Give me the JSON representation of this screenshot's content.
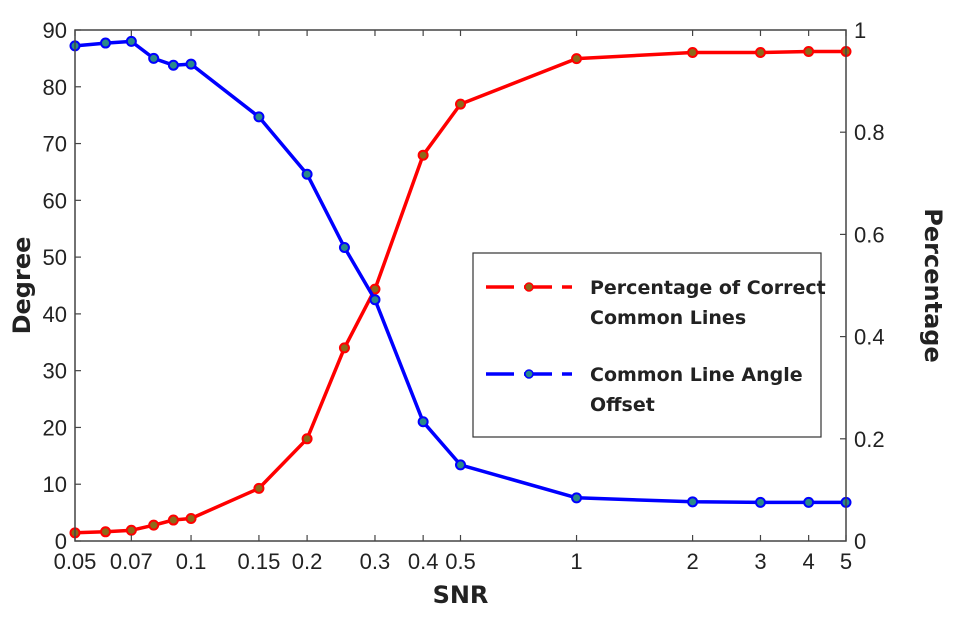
{
  "chart_data": {
    "type": "line",
    "title": "",
    "xlabel": "SNR",
    "ylabel": "Degree",
    "y2label": "Percentage",
    "x_scale": "log",
    "xlim": [
      0.05,
      5
    ],
    "ylim": [
      0,
      90
    ],
    "y2lim": [
      0,
      1
    ],
    "grid": false,
    "legend_position": "center-right",
    "x_ticks": [
      0.05,
      0.07,
      0.1,
      0.15,
      0.2,
      0.3,
      0.4,
      0.5,
      1,
      2,
      3,
      4,
      5
    ],
    "x_tick_labels": [
      "0.05",
      "0.07",
      "0.1",
      "0.15",
      "0.2",
      "0.3",
      "0.4",
      "0.5",
      "1",
      "2",
      "3",
      "4",
      "5"
    ],
    "y_ticks": [
      0,
      10,
      20,
      30,
      40,
      50,
      60,
      70,
      80,
      90
    ],
    "y_tick_labels": [
      "0",
      "10",
      "20",
      "30",
      "40",
      "50",
      "60",
      "70",
      "80",
      "90"
    ],
    "y2_ticks": [
      0,
      0.2,
      0.4,
      0.6,
      0.8,
      1
    ],
    "y2_tick_labels": [
      "0",
      "0.2",
      "0.4",
      "0.6",
      "0.8",
      "1"
    ],
    "series": [
      {
        "name": "Percentage of Correct Common Lines",
        "legend_lines": [
          "Percentage of Correct",
          "Common Lines"
        ],
        "axis": "right",
        "color": "#ff0000",
        "marker_color": "#8b6a1a",
        "x": [
          0.05,
          0.06,
          0.07,
          0.08,
          0.09,
          0.1,
          0.15,
          0.2,
          0.25,
          0.3,
          0.4,
          0.5,
          1,
          2,
          3,
          4,
          5
        ],
        "values": [
          0.016,
          0.018,
          0.021,
          0.031,
          0.041,
          0.044,
          0.103,
          0.2,
          0.378,
          0.493,
          0.755,
          0.855,
          0.944,
          0.956,
          0.956,
          0.958,
          0.958
        ]
      },
      {
        "name": "Common Line Angle Offset",
        "legend_lines": [
          "Common Line Angle",
          "Offset"
        ],
        "axis": "left",
        "color": "#0000ff",
        "marker_color": "#2a8a8a",
        "x": [
          0.05,
          0.06,
          0.07,
          0.08,
          0.09,
          0.1,
          0.15,
          0.2,
          0.25,
          0.3,
          0.4,
          0.5,
          1,
          2,
          3,
          4,
          5
        ],
        "values": [
          87.2,
          87.7,
          88.0,
          85.0,
          83.8,
          84.0,
          74.7,
          64.6,
          51.7,
          42.5,
          21.0,
          13.4,
          7.6,
          6.9,
          6.8,
          6.8,
          6.8
        ]
      }
    ]
  }
}
